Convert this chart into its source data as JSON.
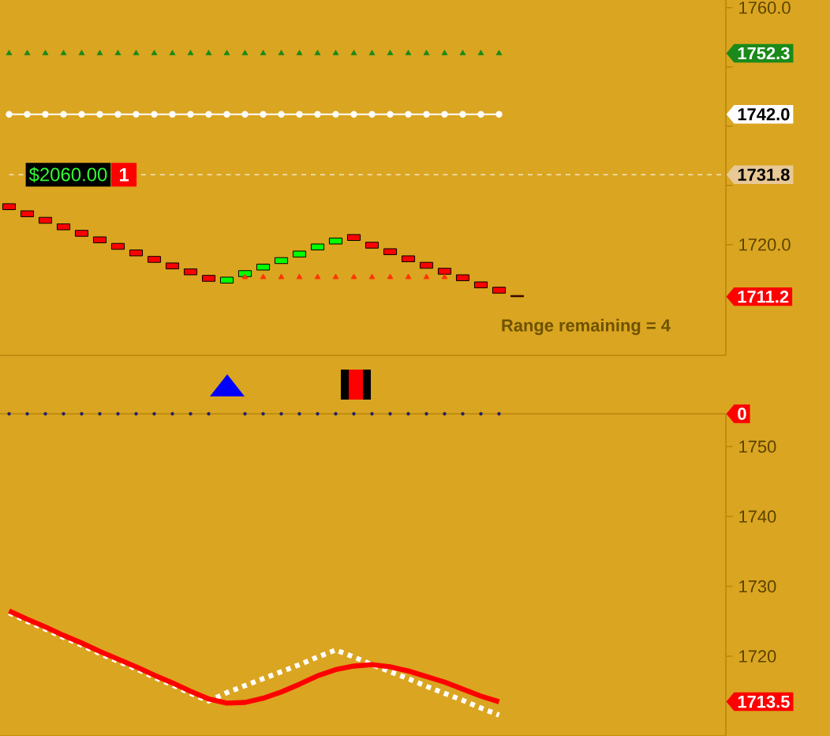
{
  "chart_data": [
    {
      "type": "candlestick",
      "categories": [
        null,
        null,
        null,
        null,
        null,
        null,
        null,
        null,
        null,
        null,
        null,
        null,
        null,
        null,
        null,
        null,
        null,
        null,
        null,
        null,
        null,
        null,
        null,
        null,
        null,
        null,
        null,
        null,
        null,
        null,
        null,
        null,
        null,
        null,
        null,
        null,
        null,
        null,
        null,
        null
      ],
      "ylim": [
        1701.3,
        1761.3
      ],
      "yticks": [
        {
          "value": 1711.2,
          "label": "1711.2"
        },
        {
          "value": 1720,
          "label": "1720.0"
        },
        {
          "value": 1730,
          "label": null
        },
        {
          "value": 1740,
          "label": null
        },
        {
          "value": 1742.0,
          "label": "1742.0"
        },
        {
          "value": 1750,
          "label": null
        },
        {
          "value": 1752.3,
          "label": "1752.3"
        },
        {
          "value": 1760,
          "label": "1760.0"
        }
      ],
      "tick_labels": "y",
      "ohlc": [
        [
          1726.9,
          1726.9,
          1725.9,
          1725.9
        ],
        [
          1725.7,
          1725.7,
          1724.7,
          1724.7
        ],
        [
          1724.6,
          1724.6,
          1723.6,
          1723.6
        ],
        [
          1723.5,
          1723.5,
          1722.5,
          1722.5
        ],
        [
          1722.4,
          1722.4,
          1721.4,
          1721.4
        ],
        [
          1721.3,
          1721.3,
          1720.3,
          1720.3
        ],
        [
          1720.2,
          1720.2,
          1719.2,
          1719.2
        ],
        [
          1719.1,
          1719.1,
          1718.1,
          1718.1
        ],
        [
          1718.0,
          1718.0,
          1717.0,
          1717.0
        ],
        [
          1716.9,
          1716.9,
          1715.9,
          1715.9
        ],
        [
          1715.9,
          1715.9,
          1714.9,
          1714.9
        ],
        [
          1714.8,
          1714.8,
          1713.8,
          1713.8
        ],
        [
          1713.5,
          1714.5,
          1713.5,
          1714.5
        ],
        [
          1714.6,
          1715.6,
          1714.6,
          1715.6
        ],
        [
          1715.7,
          1716.7,
          1715.7,
          1716.7
        ],
        [
          1716.8,
          1717.8,
          1716.8,
          1717.8
        ],
        [
          1717.9,
          1718.9,
          1717.9,
          1718.9
        ],
        [
          1719.1,
          1720.1,
          1719.1,
          1720.1
        ],
        [
          1720.1,
          1721.1,
          1720.1,
          1721.1
        ],
        [
          1721.7,
          1721.7,
          1720.7,
          1720.7
        ],
        [
          1720.4,
          1720.4,
          1719.4,
          1719.4
        ],
        [
          1719.3,
          1719.3,
          1718.3,
          1718.3
        ],
        [
          1718.1,
          1718.1,
          1717.1,
          1717.1
        ],
        [
          1717.0,
          1717.0,
          1716.0,
          1716.0
        ],
        [
          1716.0,
          1716.0,
          1715.0,
          1715.0
        ],
        [
          1714.9,
          1714.9,
          1713.9,
          1713.9
        ],
        [
          1713.7,
          1713.7,
          1712.7,
          1712.7
        ],
        [
          1712.8,
          1712.8,
          1711.8,
          1711.8
        ],
        [
          1711.4,
          1711.4,
          1711.2,
          1711.2
        ],
        null,
        null,
        null,
        null,
        null,
        null,
        null,
        null,
        null,
        null,
        null
      ],
      "colors": [
        "#ff0000",
        "#ff0000",
        "#ff0000",
        "#ff0000",
        "#ff0000",
        "#ff0000",
        "#ff0000",
        "#ff0000",
        "#ff0000",
        "#ff0000",
        "#ff0000",
        "#ff0000",
        "#00ff00",
        "#00ff00",
        "#00ff00",
        "#00ff00",
        "#00ff00",
        "#00ff00",
        "#00ff00",
        "#ff0000",
        "#ff0000",
        "#ff0000",
        "#ff0000",
        "#ff0000",
        "#ff0000",
        "#ff0000",
        "#ff0000",
        "#ff0000",
        "#ff0000",
        null,
        null,
        null,
        null,
        null,
        null,
        null,
        null,
        null,
        null,
        null
      ],
      "series": [
        {
          "type": "scatter",
          "marker": "triangle",
          "color": "#1a8a1a",
          "values": [
            1752.3,
            1752.3,
            1752.3,
            1752.3,
            1752.3,
            1752.3,
            1752.3,
            1752.3,
            1752.3,
            1752.3,
            1752.3,
            1752.3,
            1752.3,
            1752.3,
            1752.3,
            1752.3,
            1752.3,
            1752.3,
            1752.3,
            1752.3,
            1752.3,
            1752.3,
            1752.3,
            1752.3,
            1752.3,
            1752.3,
            1752.3,
            1752.3,
            null,
            null,
            null,
            null,
            null,
            null,
            null,
            null,
            null,
            null,
            null,
            null
          ]
        },
        {
          "type": "line",
          "marker": "circle",
          "color": "#ffffff",
          "values": [
            1742.0,
            1742.0,
            1742.0,
            1742.0,
            1742.0,
            1742.0,
            1742.0,
            1742.0,
            1742.0,
            1742.0,
            1742.0,
            1742.0,
            1742.0,
            1742.0,
            1742.0,
            1742.0,
            1742.0,
            1742.0,
            1742.0,
            1742.0,
            1742.0,
            1742.0,
            1742.0,
            1742.0,
            1742.0,
            1742.0,
            1742.0,
            1742.0,
            null,
            null,
            null,
            null,
            null,
            null,
            null,
            null,
            null,
            null,
            null,
            null
          ]
        },
        {
          "type": "scatter",
          "marker": "triangle",
          "color": "#ff3300",
          "values": [
            null,
            null,
            null,
            null,
            null,
            null,
            null,
            null,
            null,
            null,
            null,
            null,
            null,
            1714.5,
            1714.5,
            1714.5,
            1714.5,
            1714.5,
            1714.5,
            1714.5,
            1714.5,
            1714.5,
            1714.5,
            1714.5,
            1714.5,
            null,
            null,
            null,
            null,
            null,
            null,
            null,
            null,
            null,
            null,
            null,
            null,
            null,
            null,
            null
          ]
        }
      ],
      "ref_lines": [
        {
          "axis": "y",
          "value": 1731.8,
          "label": "1731.8",
          "color": "#f2e6c4",
          "line_style": "dashed"
        }
      ],
      "annotations": [
        "$2060.00",
        "1",
        "Range remaining = 4"
      ]
    },
    {
      "type": "other",
      "categories": [
        null,
        null,
        null,
        null,
        null,
        null,
        null,
        null,
        null,
        null,
        null,
        null,
        null,
        null,
        null,
        null,
        null,
        null,
        null,
        null,
        null,
        null,
        null,
        null,
        null,
        null,
        null,
        null,
        null,
        null,
        null,
        null,
        null,
        null,
        null,
        null,
        null,
        null,
        null,
        null
      ],
      "annotations": [
        "0"
      ]
    },
    {
      "type": "line",
      "categories": [
        null,
        null,
        null,
        null,
        null,
        null,
        null,
        null,
        null,
        null,
        null,
        null,
        null,
        null,
        null,
        null,
        null,
        null,
        null,
        null,
        null,
        null,
        null,
        null,
        null,
        null,
        null,
        null,
        null,
        null,
        null,
        null,
        null,
        null,
        null,
        null,
        null,
        null,
        null,
        null
      ],
      "ylim": [
        1708.6,
        1754.7
      ],
      "yticks": [
        {
          "value": 1713.5,
          "label": "1713.5"
        },
        1720,
        1730,
        1740,
        1750
      ],
      "tick_labels": "y",
      "series": [
        {
          "color": "#ffffff",
          "line_style": "dashed",
          "values": [
            1726.2,
            1725.0,
            1723.9,
            1722.7,
            1721.6,
            1720.4,
            1719.3,
            1718.2,
            1717.0,
            1715.9,
            1714.7,
            1713.6,
            1714.8,
            1715.8,
            1716.8,
            1717.8,
            1718.8,
            1719.9,
            1720.9,
            1719.9,
            1718.8,
            1717.8,
            1716.8,
            1715.7,
            1714.7,
            1713.7,
            1712.6,
            1711.6,
            null,
            null,
            null,
            null,
            null,
            null,
            null,
            null,
            null,
            null,
            null,
            null
          ]
        },
        {
          "color": "#ff0000",
          "line_style": "solid",
          "values": [
            1726.5,
            1725.3,
            1724.2,
            1723.0,
            1721.9,
            1720.7,
            1719.6,
            1718.5,
            1717.3,
            1716.2,
            1715.0,
            1713.9,
            1713.3,
            1713.4,
            1714.0,
            1714.9,
            1716.0,
            1717.2,
            1718.1,
            1718.6,
            1718.8,
            1718.5,
            1717.9,
            1717.1,
            1716.3,
            1715.3,
            1714.3,
            1713.5,
            null,
            null,
            null,
            null,
            null,
            null,
            null,
            null,
            null,
            null,
            null,
            null
          ]
        }
      ]
    }
  ]
}
